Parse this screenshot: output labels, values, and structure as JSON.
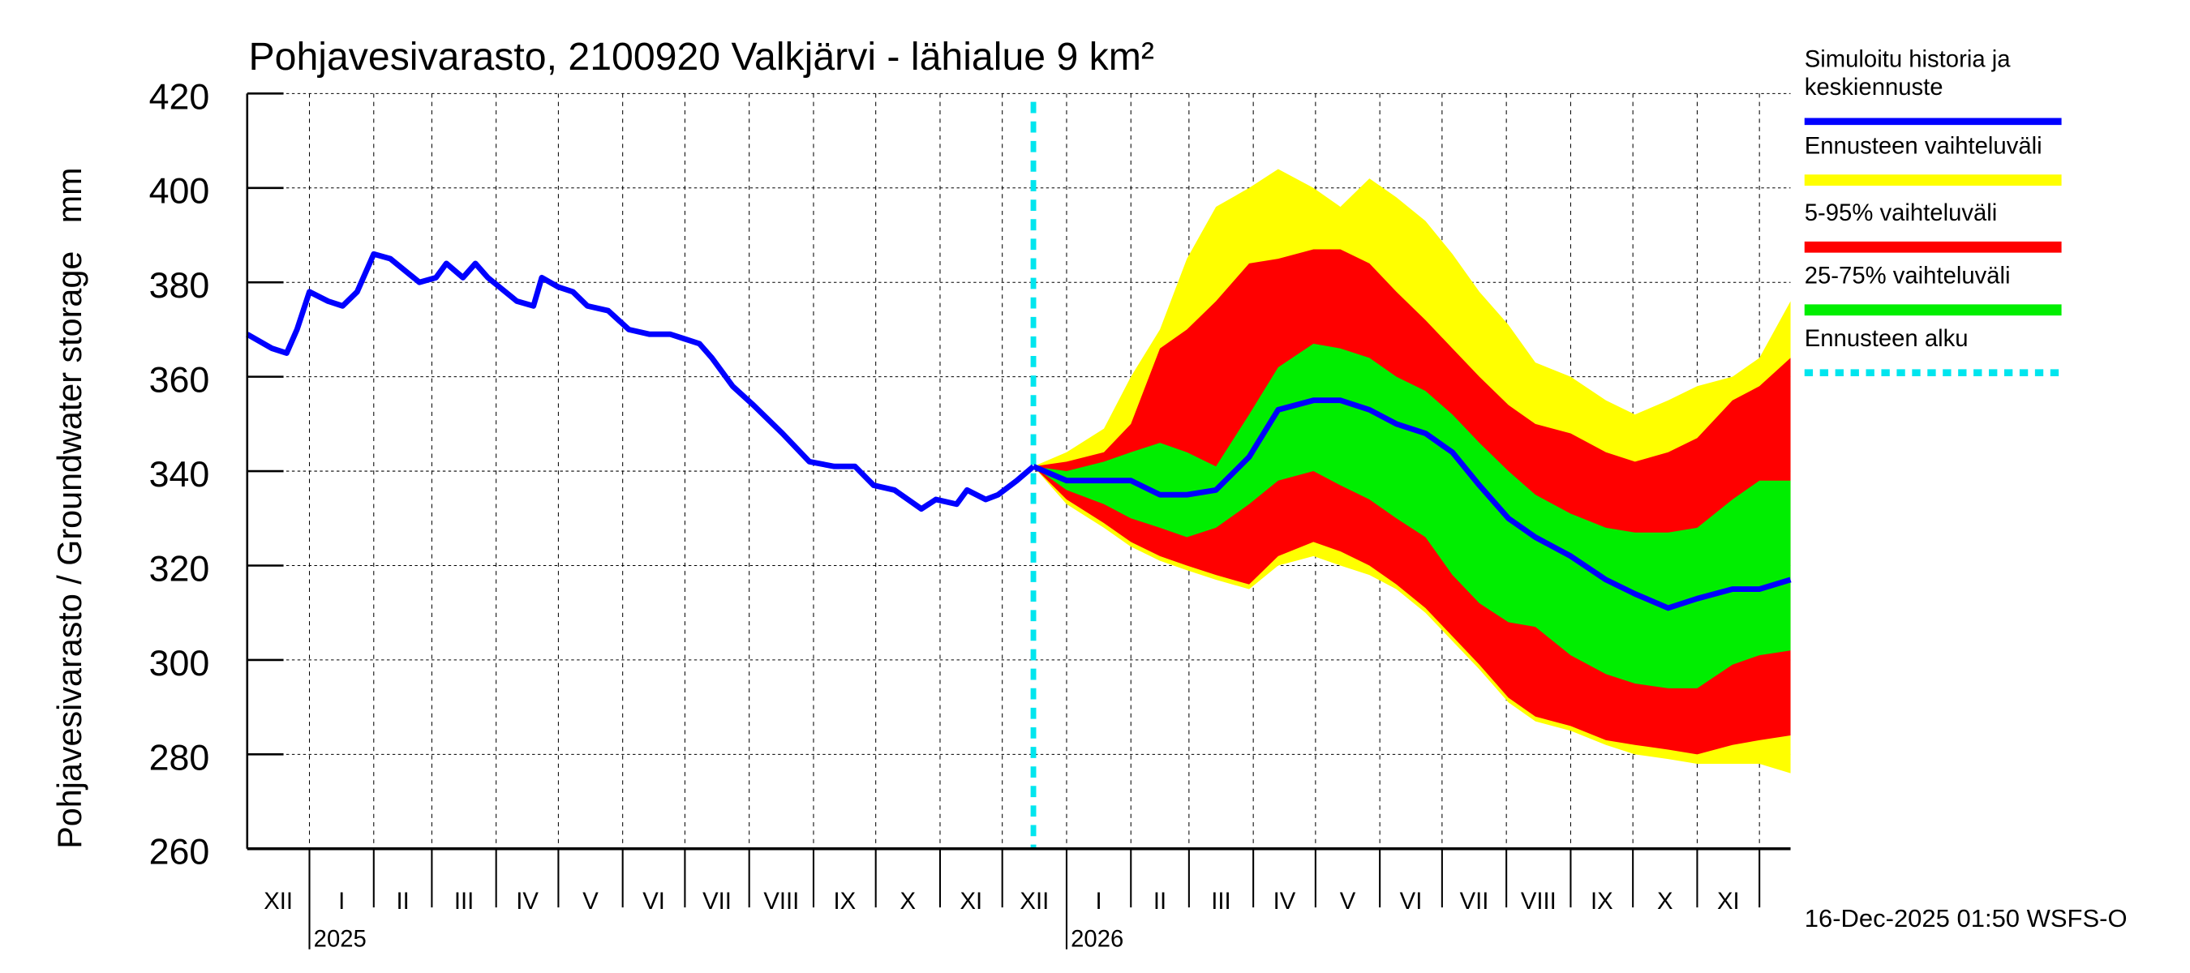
{
  "chart_data": {
    "type": "area",
    "title": "Pohjavesivarasto, 2100920 Valkjärvi - lähialue 9 km²",
    "ylabel": "Pohjavesivarasto / Groundwater storage   mm",
    "ylim": [
      260,
      420
    ],
    "yticks": [
      260,
      280,
      300,
      320,
      340,
      360,
      380,
      400,
      420
    ],
    "xlim": [
      "2024-12-02",
      "2026-12-16"
    ],
    "months": [
      "XII",
      "I",
      "II",
      "III",
      "IV",
      "V",
      "VI",
      "VII",
      "VIII",
      "IX",
      "X",
      "XI",
      "XII",
      "I",
      "II",
      "III",
      "IV",
      "V",
      "VI",
      "VII",
      "VIII",
      "IX",
      "X",
      "XI"
    ],
    "years": [
      "2025",
      "2026"
    ],
    "grid": true,
    "legend_position": "right",
    "forecast_start": "2025-12-16",
    "timestamp": "16-Dec-2025 01:50 WSFS-O",
    "legend": [
      {
        "label": "Simuloitu historia ja keskiennuste",
        "color": "#0000ff"
      },
      {
        "label": "Ennusteen vaihteluväli",
        "color": "#ffff00"
      },
      {
        "label": "5-95% vaihteluväli",
        "color": "#ff0000"
      },
      {
        "label": "25-75% vaihteluväli",
        "color": "#00ee00"
      },
      {
        "label": "Ennusteen alku",
        "color": "#00e5ee"
      }
    ],
    "history": {
      "dates": [
        "2024-12-02",
        "2024-12-14",
        "2024-12-21",
        "2024-12-26",
        "2025-01-01",
        "2025-01-10",
        "2025-01-17",
        "2025-01-24",
        "2025-02-01",
        "2025-02-09",
        "2025-02-23",
        "2025-03-03",
        "2025-03-08",
        "2025-03-16",
        "2025-03-22",
        "2025-03-28",
        "2025-04-11",
        "2025-04-19",
        "2025-04-23",
        "2025-05-01",
        "2025-05-08",
        "2025-05-15",
        "2025-05-25",
        "2025-06-04",
        "2025-06-14",
        "2025-06-24",
        "2025-07-01",
        "2025-07-08",
        "2025-07-14",
        "2025-07-24",
        "2025-08-03",
        "2025-08-17",
        "2025-08-30",
        "2025-09-11",
        "2025-09-21",
        "2025-09-30",
        "2025-10-10",
        "2025-10-23",
        "2025-10-30",
        "2025-11-09",
        "2025-11-14",
        "2025-11-23",
        "2025-11-29",
        "2025-12-08",
        "2025-12-16"
      ],
      "values": [
        369,
        366,
        365,
        370,
        378,
        376,
        375,
        378,
        386,
        385,
        380,
        381,
        384,
        381,
        384,
        381,
        376,
        375,
        381,
        379,
        378,
        375,
        374,
        370,
        369,
        369,
        368,
        367,
        364,
        358,
        354,
        348,
        342,
        341,
        341,
        337,
        336,
        332,
        334,
        333,
        336,
        334,
        335,
        338,
        341
      ]
    },
    "forecast": {
      "dates": [
        "2025-12-16",
        "2026-01-01",
        "2026-01-19",
        "2026-02-01",
        "2026-02-15",
        "2026-02-28",
        "2026-03-14",
        "2026-03-30",
        "2026-04-13",
        "2026-04-30",
        "2026-05-13",
        "2026-05-27",
        "2026-06-09",
        "2026-06-23",
        "2026-07-06",
        "2026-07-19",
        "2026-08-02",
        "2026-08-15",
        "2026-09-01",
        "2026-09-18",
        "2026-10-02",
        "2026-10-18",
        "2026-11-01",
        "2026-11-18",
        "2026-12-01",
        "2026-12-16"
      ],
      "median": [
        341,
        338,
        338,
        338,
        335,
        335,
        336,
        343,
        353,
        355,
        355,
        353,
        350,
        348,
        344,
        337,
        330,
        326,
        322,
        317,
        314,
        311,
        313,
        315,
        315,
        317
      ],
      "p25": [
        341,
        336,
        333,
        330,
        328,
        326,
        328,
        333,
        338,
        340,
        337,
        334,
        330,
        326,
        318,
        312,
        308,
        307,
        301,
        297,
        295,
        294,
        294,
        299,
        301,
        302
      ],
      "p75": [
        341,
        340,
        342,
        344,
        346,
        344,
        341,
        352,
        362,
        367,
        366,
        364,
        360,
        357,
        352,
        346,
        340,
        335,
        331,
        328,
        327,
        327,
        328,
        334,
        338,
        338
      ],
      "p5": [
        341,
        334,
        329,
        325,
        322,
        320,
        318,
        316,
        322,
        325,
        323,
        320,
        316,
        311,
        305,
        299,
        292,
        288,
        286,
        283,
        282,
        281,
        280,
        282,
        283,
        284
      ],
      "p95": [
        341,
        342,
        344,
        350,
        366,
        370,
        376,
        384,
        385,
        387,
        387,
        384,
        378,
        372,
        366,
        360,
        354,
        350,
        348,
        344,
        342,
        344,
        347,
        355,
        358,
        364
      ],
      "min": [
        341,
        333,
        328,
        324,
        321,
        319,
        317,
        315,
        320,
        322,
        320,
        318,
        315,
        310,
        304,
        298,
        291,
        287,
        285,
        282,
        280,
        279,
        278,
        278,
        278,
        276
      ],
      "max": [
        341,
        344,
        349,
        360,
        370,
        385,
        396,
        400,
        404,
        400,
        396,
        402,
        398,
        393,
        386,
        378,
        371,
        363,
        360,
        355,
        352,
        355,
        358,
        360,
        364,
        376
      ]
    }
  }
}
